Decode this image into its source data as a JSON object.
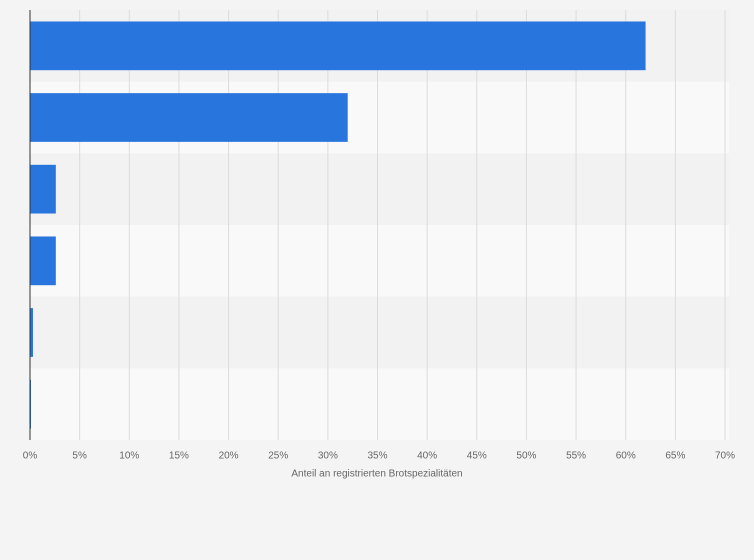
{
  "chart_data": {
    "type": "hbar",
    "xlabel": "Anteil an registrierten Brotspezialitäten",
    "categories": [
      null,
      null,
      null,
      null,
      null,
      null
    ],
    "values": [
      62,
      32,
      2.6,
      2.6,
      0.3,
      0.1
    ],
    "color": "#2876dd",
    "xlim": [
      0,
      70
    ],
    "xticks": [
      {
        "value": 0,
        "label": "0%"
      },
      {
        "value": 5,
        "label": "5%"
      },
      {
        "value": 10,
        "label": "10%"
      },
      {
        "value": 15,
        "label": "15%"
      },
      {
        "value": 20,
        "label": "20%"
      },
      {
        "value": 25,
        "label": "25%"
      },
      {
        "value": 30,
        "label": "30%"
      },
      {
        "value": 35,
        "label": "35%"
      },
      {
        "value": 40,
        "label": "40%"
      },
      {
        "value": 45,
        "label": "45%"
      },
      {
        "value": 50,
        "label": "50%"
      },
      {
        "value": 55,
        "label": "55%"
      },
      {
        "value": 60,
        "label": "60%"
      },
      {
        "value": 65,
        "label": "65%"
      },
      {
        "value": 70,
        "label": "70%"
      }
    ],
    "grid": true
  }
}
